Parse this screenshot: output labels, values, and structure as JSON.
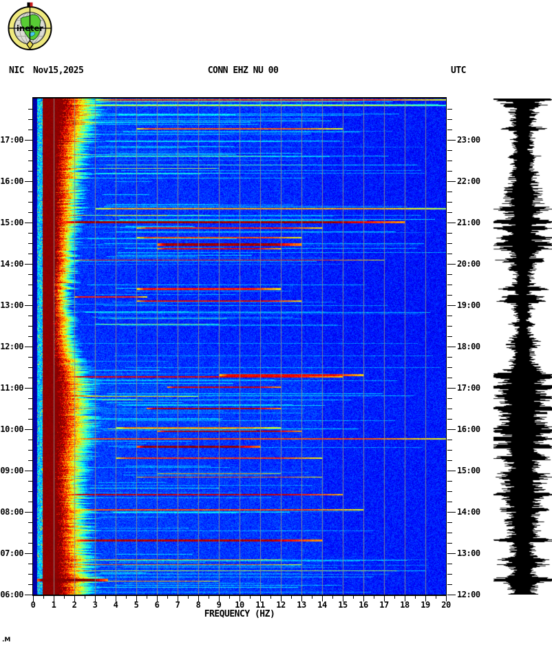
{
  "header": {
    "network": "NIC",
    "date": "Nov15,2025",
    "title": "CONN EHZ NU 00",
    "right_tz": "UTC"
  },
  "logo": {
    "text": "ineter",
    "ring_color": "#efe97e",
    "globe_color": "#dcdcd4",
    "map_color": "#58cc34",
    "lake_color": "#45c8ee",
    "flag_red": "#cc2020",
    "arrow_yellow": "#e6d84e"
  },
  "footer_mark": ".M",
  "chart_data": {
    "type": "heatmap",
    "title": "CONN EHZ NU 00",
    "xlabel": "FREQUENCY (HZ)",
    "xlim": [
      0,
      20
    ],
    "x_tick_labels": [
      "0",
      "1",
      "2",
      "3",
      "4",
      "5",
      "6",
      "7",
      "8",
      "9",
      "10",
      "11",
      "12",
      "13",
      "14",
      "15",
      "16",
      "17",
      "18",
      "19",
      "20"
    ],
    "x_minor_step_hz": 0.5,
    "left_axis_ticks": [
      "17:00",
      "16:00",
      "15:00",
      "14:00",
      "13:00",
      "12:00",
      "11:00",
      "10:00",
      "09:00",
      "08:00",
      "07:00",
      "06:00"
    ],
    "right_axis_ticks": [
      "23:00",
      "22:00",
      "21:00",
      "20:00",
      "19:00",
      "18:00",
      "17:00",
      "16:00",
      "15:00",
      "14:00",
      "13:00",
      "12:00"
    ],
    "time_top_local": "18:00",
    "time_bottom_local": "06:00",
    "time_bottom_utc": "12:00",
    "minor_ticks_per_hour": 4,
    "grid_on": true,
    "grid_color": "#8a8a8a",
    "colormap": "jet",
    "background_level": 0.16,
    "low_freq_dark_band_hz": [
      0,
      0.17
    ],
    "microseism_cyan_band_hz": [
      0.17,
      0.45
    ],
    "tremor_solid_edge_hz_by_t": [
      [
        0,
        1.45
      ],
      [
        0.05,
        1.35
      ],
      [
        0.1,
        1.2
      ],
      [
        0.2,
        1.15
      ],
      [
        0.3,
        1.1
      ],
      [
        0.4,
        1.0
      ],
      [
        0.5,
        1.05
      ],
      [
        0.56,
        1.2
      ],
      [
        0.64,
        1.3
      ],
      [
        0.72,
        1.15
      ],
      [
        0.8,
        1.2
      ],
      [
        0.9,
        1.25
      ],
      [
        1.0,
        1.35
      ]
    ],
    "tremor_falloff_hz_by_t": [
      [
        0,
        2.0
      ],
      [
        0.08,
        1.6
      ],
      [
        0.18,
        1.3
      ],
      [
        0.3,
        1.1
      ],
      [
        0.42,
        0.9
      ],
      [
        0.5,
        1.1
      ],
      [
        0.58,
        1.7
      ],
      [
        0.68,
        1.8
      ],
      [
        0.78,
        1.4
      ],
      [
        0.88,
        1.6
      ],
      [
        1.0,
        1.8
      ]
    ],
    "activity_by_t": [
      [
        0,
        0.55
      ],
      [
        0.06,
        0.35
      ],
      [
        0.14,
        0.3
      ],
      [
        0.24,
        0.35
      ],
      [
        0.34,
        0.25
      ],
      [
        0.44,
        0.15
      ],
      [
        0.52,
        0.3
      ],
      [
        0.58,
        0.55
      ],
      [
        0.66,
        0.5
      ],
      [
        0.74,
        0.4
      ],
      [
        0.82,
        0.45
      ],
      [
        0.9,
        0.45
      ],
      [
        1.0,
        0.5
      ]
    ],
    "events": [
      [
        0.001,
        3.0,
        20.0,
        0.8,
        2
      ],
      [
        0.013,
        2.0,
        20.0,
        0.55,
        2
      ],
      [
        0.06,
        5.0,
        15.0,
        0.78,
        2
      ],
      [
        0.115,
        4.0,
        12.0,
        0.45,
        1
      ],
      [
        0.15,
        3.0,
        10.0,
        0.4,
        1
      ],
      [
        0.221,
        3.0,
        20.0,
        0.72,
        2
      ],
      [
        0.247,
        1.2,
        18.0,
        0.97,
        3
      ],
      [
        0.26,
        5.0,
        14.0,
        0.85,
        2
      ],
      [
        0.28,
        5.0,
        13.0,
        0.8,
        2
      ],
      [
        0.292,
        6.0,
        13.0,
        0.97,
        4
      ],
      [
        0.302,
        6.0,
        12.0,
        0.9,
        2
      ],
      [
        0.325,
        2.0,
        17.0,
        0.8,
        1
      ],
      [
        0.382,
        5.0,
        12.0,
        0.85,
        3
      ],
      [
        0.399,
        2.0,
        5.5,
        0.85,
        2
      ],
      [
        0.408,
        5.0,
        13.0,
        0.9,
        2
      ],
      [
        0.455,
        3.0,
        9.0,
        0.5,
        1
      ],
      [
        0.556,
        9.0,
        16.0,
        0.88,
        3
      ],
      [
        0.561,
        1.5,
        15.0,
        0.9,
        2
      ],
      [
        0.582,
        6.5,
        12.0,
        0.92,
        2
      ],
      [
        0.601,
        2.0,
        8.0,
        0.7,
        1
      ],
      [
        0.625,
        5.5,
        12.0,
        0.95,
        2
      ],
      [
        0.663,
        4.0,
        12.0,
        0.75,
        2
      ],
      [
        0.671,
        6.0,
        13.0,
        0.95,
        2
      ],
      [
        0.686,
        1.7,
        20.0,
        0.8,
        2
      ],
      [
        0.701,
        5.0,
        11.0,
        0.98,
        3
      ],
      [
        0.725,
        4.0,
        14.0,
        0.82,
        2
      ],
      [
        0.757,
        6.0,
        12.0,
        0.7,
        1
      ],
      [
        0.764,
        5.0,
        14.0,
        0.78,
        1
      ],
      [
        0.799,
        1.5,
        15.0,
        0.93,
        2
      ],
      [
        0.829,
        2.0,
        16.0,
        0.8,
        2
      ],
      [
        0.89,
        2.0,
        14.0,
        0.95,
        3
      ],
      [
        0.93,
        2.0,
        12.0,
        0.72,
        1
      ],
      [
        0.94,
        2.0,
        13.0,
        0.78,
        1
      ],
      [
        0.969,
        0.2,
        3.6,
        1.0,
        4
      ],
      [
        0.973,
        3.6,
        9.0,
        0.7,
        1
      ]
    ],
    "faint_streak_count": 150,
    "seed": 20251115
  },
  "waveform": {
    "color": "#000000",
    "seed": 771,
    "base_half_amp": 10,
    "max_half_amp": 43
  }
}
